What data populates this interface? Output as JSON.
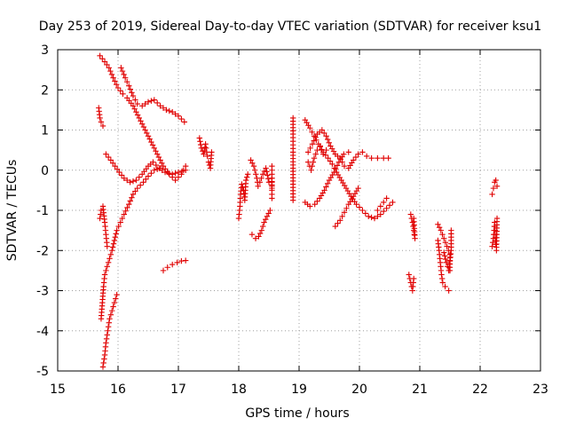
{
  "chart_data": {
    "type": "scatter",
    "title": "Day 253 of 2019, Sidereal Day-to-day VTEC variation (SDTVAR) for receiver ksu1",
    "xlabel": "GPS time / hours",
    "ylabel": "SDTVAR / TECUs",
    "xlim": [
      15,
      23
    ],
    "ylim": [
      -5,
      3
    ],
    "xticks": [
      "15",
      "16",
      "17",
      "18",
      "19",
      "20",
      "21",
      "22",
      "23"
    ],
    "yticks": [
      "-5",
      "-4",
      "-3",
      "-2",
      "-1",
      "0",
      "1",
      "2",
      "3"
    ],
    "grid": true,
    "marker": "+",
    "color": "#e00000",
    "segments": [
      {
        "name": "arc-a",
        "points": [
          [
            15.7,
            2.85
          ],
          [
            15.78,
            2.7
          ],
          [
            15.85,
            2.55
          ],
          [
            15.92,
            2.3
          ],
          [
            16.0,
            2.05
          ],
          [
            16.08,
            1.9
          ],
          [
            16.15,
            1.8
          ],
          [
            16.25,
            1.6
          ],
          [
            16.35,
            1.3
          ],
          [
            16.45,
            1.0
          ],
          [
            16.55,
            0.7
          ],
          [
            16.65,
            0.4
          ],
          [
            16.75,
            0.1
          ],
          [
            16.85,
            -0.1
          ],
          [
            16.95,
            -0.25
          ],
          [
            17.05,
            -0.1
          ],
          [
            17.12,
            0.1
          ]
        ]
      },
      {
        "name": "arc-b",
        "points": [
          [
            16.05,
            2.55
          ],
          [
            16.12,
            2.3
          ],
          [
            16.18,
            2.1
          ],
          [
            16.25,
            1.85
          ],
          [
            16.32,
            1.65
          ],
          [
            16.4,
            1.6
          ],
          [
            16.5,
            1.7
          ],
          [
            16.6,
            1.75
          ],
          [
            16.7,
            1.6
          ],
          [
            16.8,
            1.5
          ],
          [
            16.9,
            1.45
          ],
          [
            17.0,
            1.35
          ],
          [
            17.1,
            1.2
          ]
        ]
      },
      {
        "name": "arc-c",
        "points": [
          [
            15.8,
            0.4
          ],
          [
            15.88,
            0.25
          ],
          [
            15.95,
            0.1
          ],
          [
            16.02,
            -0.05
          ],
          [
            16.1,
            -0.2
          ],
          [
            16.2,
            -0.3
          ],
          [
            16.3,
            -0.25
          ],
          [
            16.4,
            -0.1
          ],
          [
            16.5,
            0.1
          ],
          [
            16.58,
            0.2
          ],
          [
            16.68,
            0.05
          ],
          [
            16.78,
            -0.05
          ],
          [
            16.9,
            -0.1
          ],
          [
            17.0,
            -0.05
          ],
          [
            17.12,
            0.0
          ]
        ]
      },
      {
        "name": "arc-d",
        "points": [
          [
            15.75,
            -4.9
          ],
          [
            15.78,
            -4.6
          ],
          [
            15.8,
            -4.3
          ],
          [
            15.83,
            -4.0
          ],
          [
            15.86,
            -3.7
          ],
          [
            15.9,
            -3.5
          ],
          [
            15.94,
            -3.3
          ],
          [
            15.98,
            -3.1
          ]
        ]
      },
      {
        "name": "arc-e",
        "points": [
          [
            15.72,
            -3.7
          ],
          [
            15.74,
            -3.3
          ],
          [
            15.76,
            -2.9
          ],
          [
            15.78,
            -2.6
          ],
          [
            15.82,
            -2.4
          ],
          [
            15.86,
            -2.2
          ],
          [
            15.9,
            -2.0
          ],
          [
            15.94,
            -1.75
          ],
          [
            15.98,
            -1.5
          ],
          [
            16.04,
            -1.3
          ],
          [
            16.1,
            -1.1
          ],
          [
            16.18,
            -0.85
          ],
          [
            16.25,
            -0.6
          ],
          [
            16.32,
            -0.45
          ],
          [
            16.42,
            -0.3
          ],
          [
            16.5,
            -0.15
          ],
          [
            16.6,
            0.0
          ],
          [
            16.7,
            0.05
          ]
        ]
      },
      {
        "name": "arc-f",
        "points": [
          [
            15.68,
            1.55
          ],
          [
            15.7,
            1.3
          ],
          [
            15.72,
            1.2
          ],
          [
            15.75,
            1.1
          ]
        ]
      },
      {
        "name": "arc-g",
        "points": [
          [
            15.7,
            -1.2
          ],
          [
            15.72,
            -1.0
          ],
          [
            15.75,
            -0.9
          ],
          [
            15.78,
            -1.3
          ],
          [
            15.8,
            -1.6
          ],
          [
            15.82,
            -1.9
          ]
        ]
      },
      {
        "name": "arc-h",
        "points": [
          [
            16.75,
            -2.5
          ],
          [
            16.82,
            -2.42
          ],
          [
            16.9,
            -2.35
          ],
          [
            16.98,
            -2.3
          ],
          [
            17.05,
            -2.26
          ],
          [
            17.12,
            -2.25
          ]
        ]
      },
      {
        "name": "arc-i",
        "points": [
          [
            17.35,
            0.8
          ],
          [
            17.38,
            0.55
          ],
          [
            17.42,
            0.4
          ],
          [
            17.45,
            0.65
          ],
          [
            17.48,
            0.35
          ],
          [
            17.5,
            0.2
          ],
          [
            17.53,
            0.05
          ],
          [
            17.55,
            0.45
          ]
        ]
      },
      {
        "name": "arc-j",
        "points": [
          [
            18.0,
            -1.2
          ],
          [
            18.02,
            -0.9
          ],
          [
            18.03,
            -0.6
          ],
          [
            18.05,
            -0.35
          ],
          [
            18.08,
            -0.5
          ],
          [
            18.1,
            -0.75
          ],
          [
            18.12,
            -0.25
          ],
          [
            18.15,
            -0.1
          ]
        ]
      },
      {
        "name": "arc-k",
        "points": [
          [
            18.2,
            0.25
          ],
          [
            18.25,
            0.1
          ],
          [
            18.3,
            -0.2
          ],
          [
            18.32,
            -0.4
          ],
          [
            18.35,
            -0.3
          ],
          [
            18.4,
            -0.1
          ],
          [
            18.45,
            0.05
          ],
          [
            18.5,
            -0.3
          ],
          [
            18.55,
            -0.2
          ],
          [
            18.55,
            -0.45
          ]
        ]
      },
      {
        "name": "arc-l",
        "points": [
          [
            18.22,
            -1.6
          ],
          [
            18.28,
            -1.7
          ],
          [
            18.33,
            -1.65
          ],
          [
            18.38,
            -1.5
          ],
          [
            18.42,
            -1.3
          ],
          [
            18.47,
            -1.15
          ],
          [
            18.52,
            -1.0
          ]
        ]
      },
      {
        "name": "arc-m",
        "points": [
          [
            18.55,
            0.1
          ],
          [
            18.55,
            -0.1
          ],
          [
            18.55,
            -0.4
          ],
          [
            18.55,
            -0.7
          ]
        ]
      },
      {
        "name": "arc-n",
        "points": [
          [
            18.9,
            1.3
          ],
          [
            18.9,
            0.9
          ],
          [
            18.9,
            0.45
          ],
          [
            18.9,
            -0.75
          ]
        ]
      },
      {
        "name": "arc-o",
        "points": [
          [
            19.1,
            1.25
          ],
          [
            19.18,
            1.05
          ],
          [
            19.25,
            0.85
          ],
          [
            19.32,
            0.65
          ],
          [
            19.4,
            0.45
          ],
          [
            19.48,
            0.3
          ],
          [
            19.55,
            0.15
          ],
          [
            19.62,
            -0.05
          ],
          [
            19.7,
            -0.25
          ],
          [
            19.78,
            -0.45
          ],
          [
            19.86,
            -0.65
          ],
          [
            19.95,
            -0.85
          ],
          [
            20.05,
            -1.0
          ],
          [
            20.15,
            -1.15
          ],
          [
            20.25,
            -1.2
          ],
          [
            20.35,
            -1.1
          ],
          [
            20.45,
            -0.95
          ],
          [
            20.55,
            -0.8
          ]
        ]
      },
      {
        "name": "arc-p",
        "points": [
          [
            19.15,
            0.45
          ],
          [
            19.22,
            0.65
          ],
          [
            19.3,
            0.9
          ],
          [
            19.38,
            1.0
          ],
          [
            19.45,
            0.85
          ],
          [
            19.52,
            0.6
          ],
          [
            19.6,
            0.4
          ],
          [
            19.68,
            0.3
          ],
          [
            19.75,
            0.1
          ],
          [
            19.82,
            0.05
          ],
          [
            19.9,
            0.25
          ],
          [
            19.98,
            0.4
          ],
          [
            20.05,
            0.45
          ],
          [
            20.12,
            0.35
          ],
          [
            20.2,
            0.3
          ],
          [
            20.3,
            0.3
          ],
          [
            20.4,
            0.3
          ],
          [
            20.48,
            0.3
          ]
        ]
      },
      {
        "name": "arc-q",
        "points": [
          [
            19.1,
            -0.8
          ],
          [
            19.18,
            -0.9
          ],
          [
            19.26,
            -0.85
          ],
          [
            19.34,
            -0.7
          ],
          [
            19.42,
            -0.5
          ],
          [
            19.5,
            -0.25
          ],
          [
            19.58,
            -0.05
          ],
          [
            19.66,
            0.2
          ],
          [
            19.74,
            0.4
          ],
          [
            19.82,
            0.45
          ]
        ]
      },
      {
        "name": "arc-r",
        "points": [
          [
            19.6,
            -1.4
          ],
          [
            19.68,
            -1.25
          ],
          [
            19.75,
            -1.05
          ],
          [
            19.82,
            -0.85
          ],
          [
            19.9,
            -0.65
          ],
          [
            19.98,
            -0.45
          ]
        ]
      },
      {
        "name": "arc-s",
        "points": [
          [
            19.15,
            0.2
          ],
          [
            19.2,
            0.0
          ],
          [
            19.25,
            0.3
          ],
          [
            19.3,
            0.5
          ],
          [
            19.35,
            0.6
          ],
          [
            19.4,
            0.4
          ],
          [
            19.45,
            0.5
          ]
        ]
      },
      {
        "name": "arc-t",
        "points": [
          [
            20.3,
            -1.0
          ],
          [
            20.35,
            -0.9
          ],
          [
            20.4,
            -0.8
          ],
          [
            20.45,
            -0.7
          ]
        ]
      },
      {
        "name": "arc-u",
        "points": [
          [
            20.85,
            -1.1
          ],
          [
            20.88,
            -1.3
          ],
          [
            20.9,
            -1.5
          ],
          [
            20.92,
            -1.7
          ],
          [
            20.9,
            -1.2
          ]
        ]
      },
      {
        "name": "arc-v",
        "points": [
          [
            20.82,
            -2.6
          ],
          [
            20.85,
            -2.8
          ],
          [
            20.88,
            -3.0
          ],
          [
            20.9,
            -2.7
          ]
        ]
      },
      {
        "name": "arc-w",
        "points": [
          [
            21.3,
            -1.35
          ],
          [
            21.35,
            -1.5
          ],
          [
            21.4,
            -1.7
          ],
          [
            21.45,
            -1.9
          ],
          [
            21.5,
            -2.1
          ],
          [
            21.5,
            -2.5
          ]
        ]
      },
      {
        "name": "arc-x",
        "points": [
          [
            21.3,
            -1.75
          ],
          [
            21.32,
            -2.0
          ],
          [
            21.34,
            -2.3
          ],
          [
            21.36,
            -2.6
          ],
          [
            21.38,
            -2.8
          ],
          [
            21.42,
            -2.9
          ],
          [
            21.48,
            -3.0
          ]
        ]
      },
      {
        "name": "arc-y",
        "points": [
          [
            21.4,
            -2.05
          ],
          [
            21.44,
            -2.3
          ],
          [
            21.48,
            -2.5
          ],
          [
            21.52,
            -2.0
          ],
          [
            21.52,
            -1.5
          ]
        ]
      },
      {
        "name": "arc-z",
        "points": [
          [
            22.2,
            -0.6
          ],
          [
            22.22,
            -0.45
          ],
          [
            22.24,
            -0.3
          ],
          [
            22.26,
            -0.25
          ],
          [
            22.28,
            -0.4
          ]
        ]
      },
      {
        "name": "arc-aa",
        "points": [
          [
            22.2,
            -1.9
          ],
          [
            22.22,
            -1.7
          ],
          [
            22.23,
            -1.5
          ],
          [
            22.24,
            -1.3
          ],
          [
            22.25,
            -1.6
          ],
          [
            22.26,
            -1.85
          ],
          [
            22.27,
            -2.0
          ],
          [
            22.28,
            -1.2
          ]
        ]
      }
    ]
  }
}
